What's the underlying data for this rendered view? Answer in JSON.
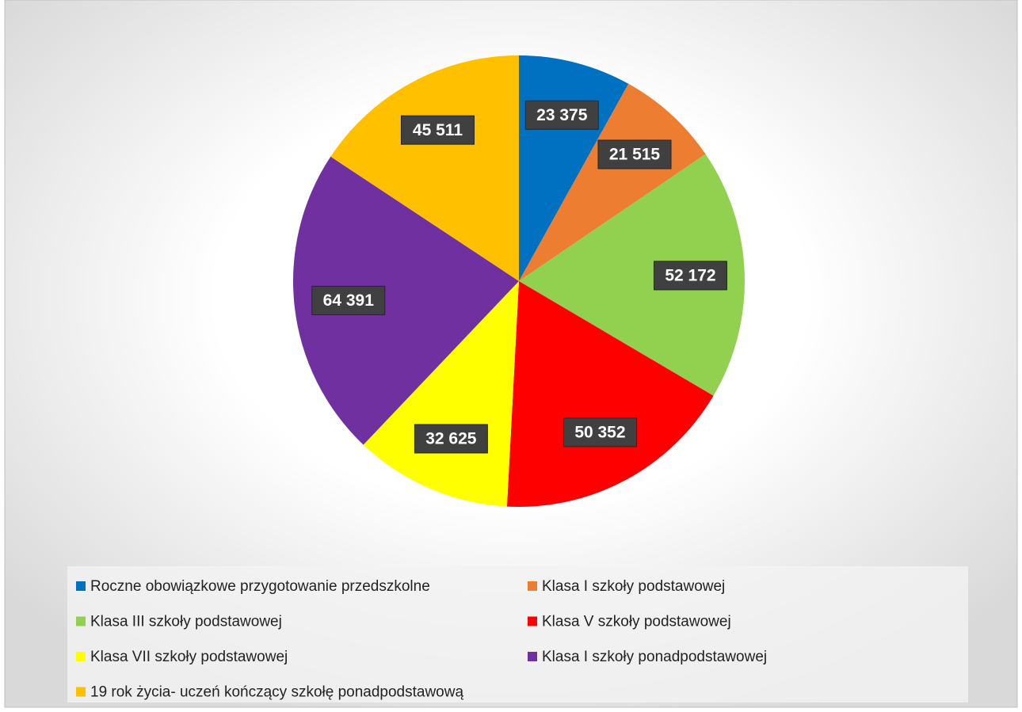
{
  "chart_data": {
    "type": "pie",
    "categories": [
      "Roczne obowiązkowe przygotowanie przedszkolne",
      "Klasa I szkoły podstawowej",
      "Klasa III szkoły podstawowej",
      "Klasa V szkoły podstawowej",
      "Klasa VII szkoły podstawowej",
      "Klasa I szkoły ponadpodstawowej",
      "19 rok życia- uczeń kończący szkołę ponadpodstawową"
    ],
    "values": [
      23375,
      21515,
      52172,
      50352,
      32625,
      64391,
      45511
    ],
    "value_labels": [
      "23 375",
      "21 515",
      "52 172",
      "50 352",
      "32 625",
      "64 391",
      "45 511"
    ],
    "colors": [
      "#0070c0",
      "#ed7d31",
      "#92d050",
      "#ff0000",
      "#ffff00",
      "#7030a0",
      "#ffc000"
    ]
  }
}
